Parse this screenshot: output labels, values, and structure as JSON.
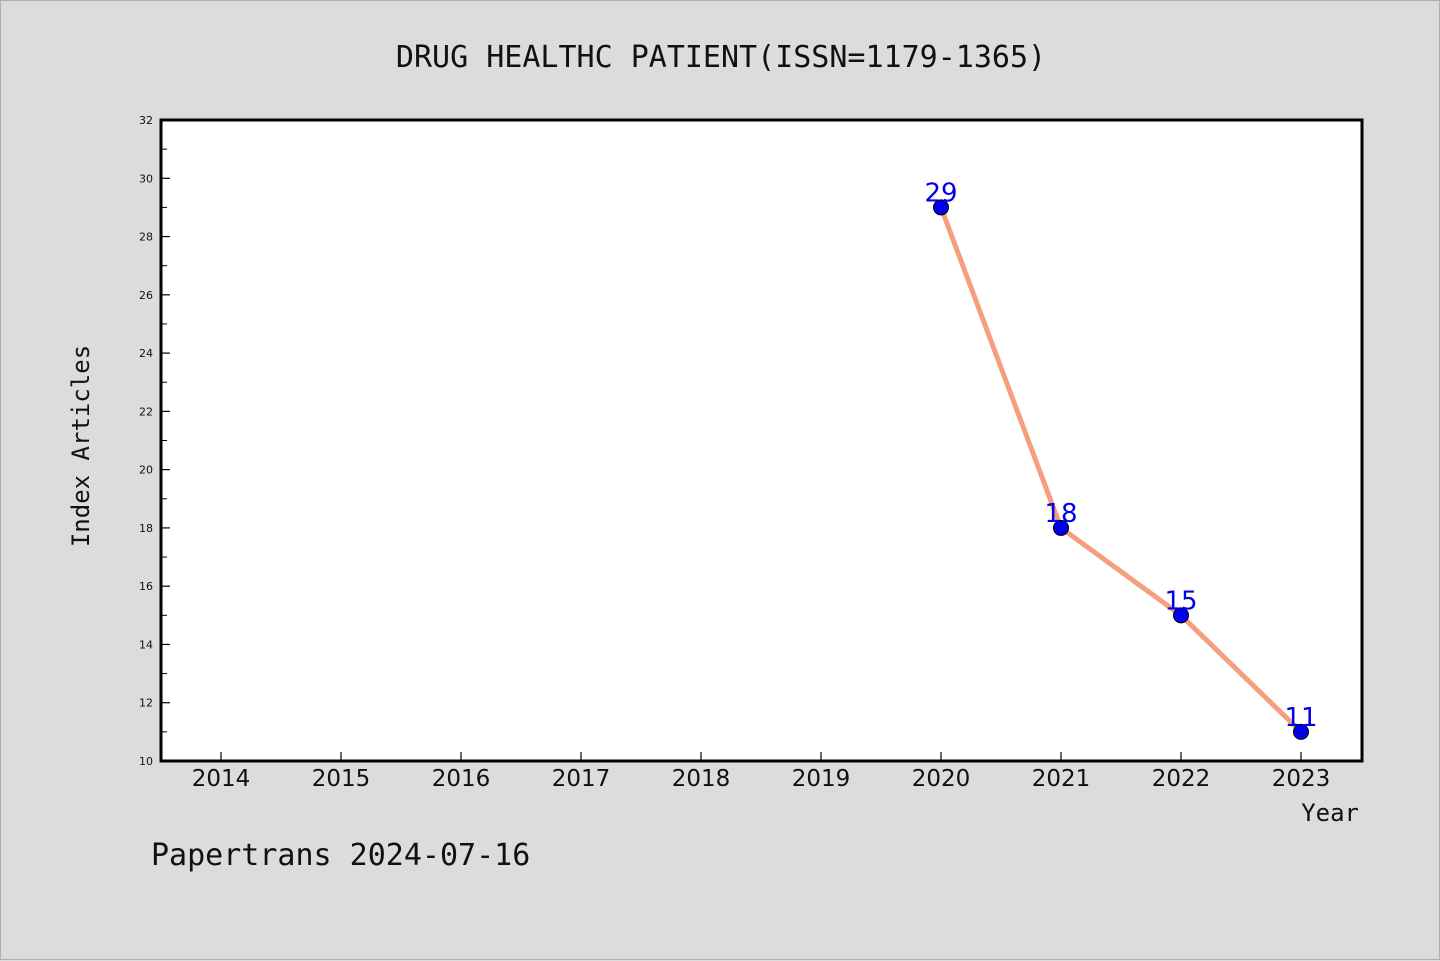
{
  "chart_data": {
    "type": "line",
    "title": "DRUG HEALTHC PATIENT(ISSN=1179-1365)",
    "xlabel": "Year",
    "ylabel": "Index Articles",
    "categories": [
      "2014",
      "2015",
      "2016",
      "2017",
      "2018",
      "2019",
      "2020",
      "2021",
      "2022",
      "2023"
    ],
    "series": [
      {
        "x": [
          "2020",
          "2021",
          "2022",
          "2023"
        ],
        "values": [
          29,
          18,
          15,
          11
        ]
      }
    ],
    "yticks": [
      "10",
      "12",
      "14",
      "16",
      "18",
      "20",
      "22",
      "24",
      "26",
      "28",
      "30",
      "32"
    ],
    "ylim": [
      10,
      32
    ],
    "grid": false,
    "legend": "none",
    "colors": {
      "line": "#f4a07e",
      "marker": "#0000ee",
      "label": "#0000ee",
      "background": "#dcdcdc",
      "plot": "#ffffff"
    }
  },
  "footer": "Papertrans 2024-07-16"
}
